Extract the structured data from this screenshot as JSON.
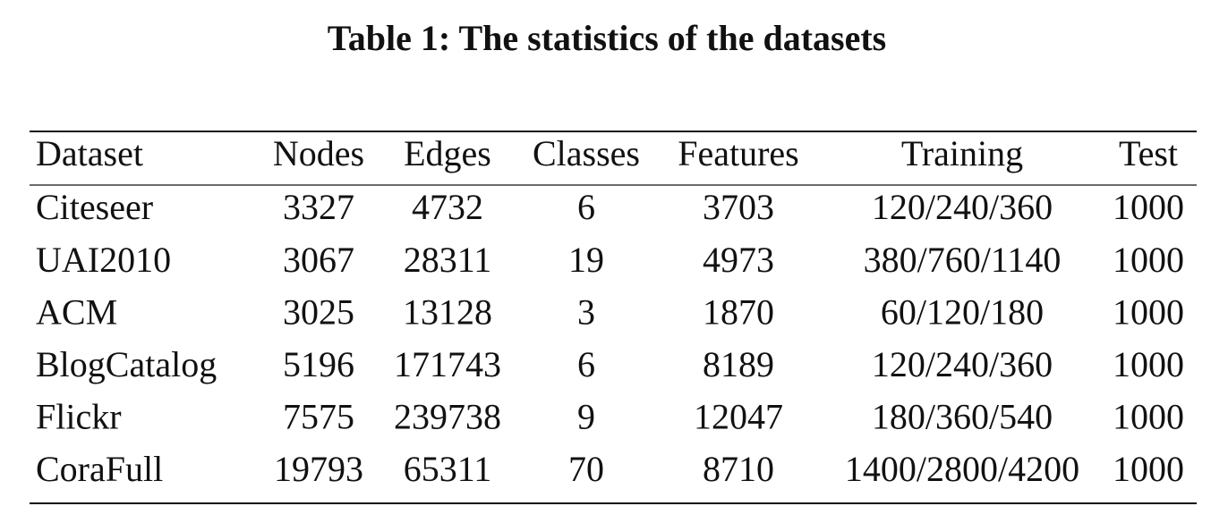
{
  "title": "Table 1: The statistics of the datasets",
  "table": {
    "header": [
      "Dataset",
      "Nodes",
      "Edges",
      "Classes",
      "Features",
      "Training",
      "Test"
    ],
    "rows": [
      [
        "Citeseer",
        3327,
        4732,
        6,
        3703,
        "120/240/360",
        1000
      ],
      [
        "UAI2010",
        3067,
        28311,
        19,
        4973,
        "380/760/1140",
        1000
      ],
      [
        "ACM",
        3025,
        13128,
        3,
        1870,
        "60/120/180",
        1000
      ],
      [
        "BlogCatalog",
        5196,
        171743,
        6,
        8189,
        "120/240/360",
        1000
      ],
      [
        "Flickr",
        7575,
        239738,
        9,
        12047,
        "180/360/540",
        1000
      ],
      [
        "CoraFull",
        19793,
        65311,
        70,
        8710,
        "1400/2800/4200",
        1000
      ]
    ]
  }
}
